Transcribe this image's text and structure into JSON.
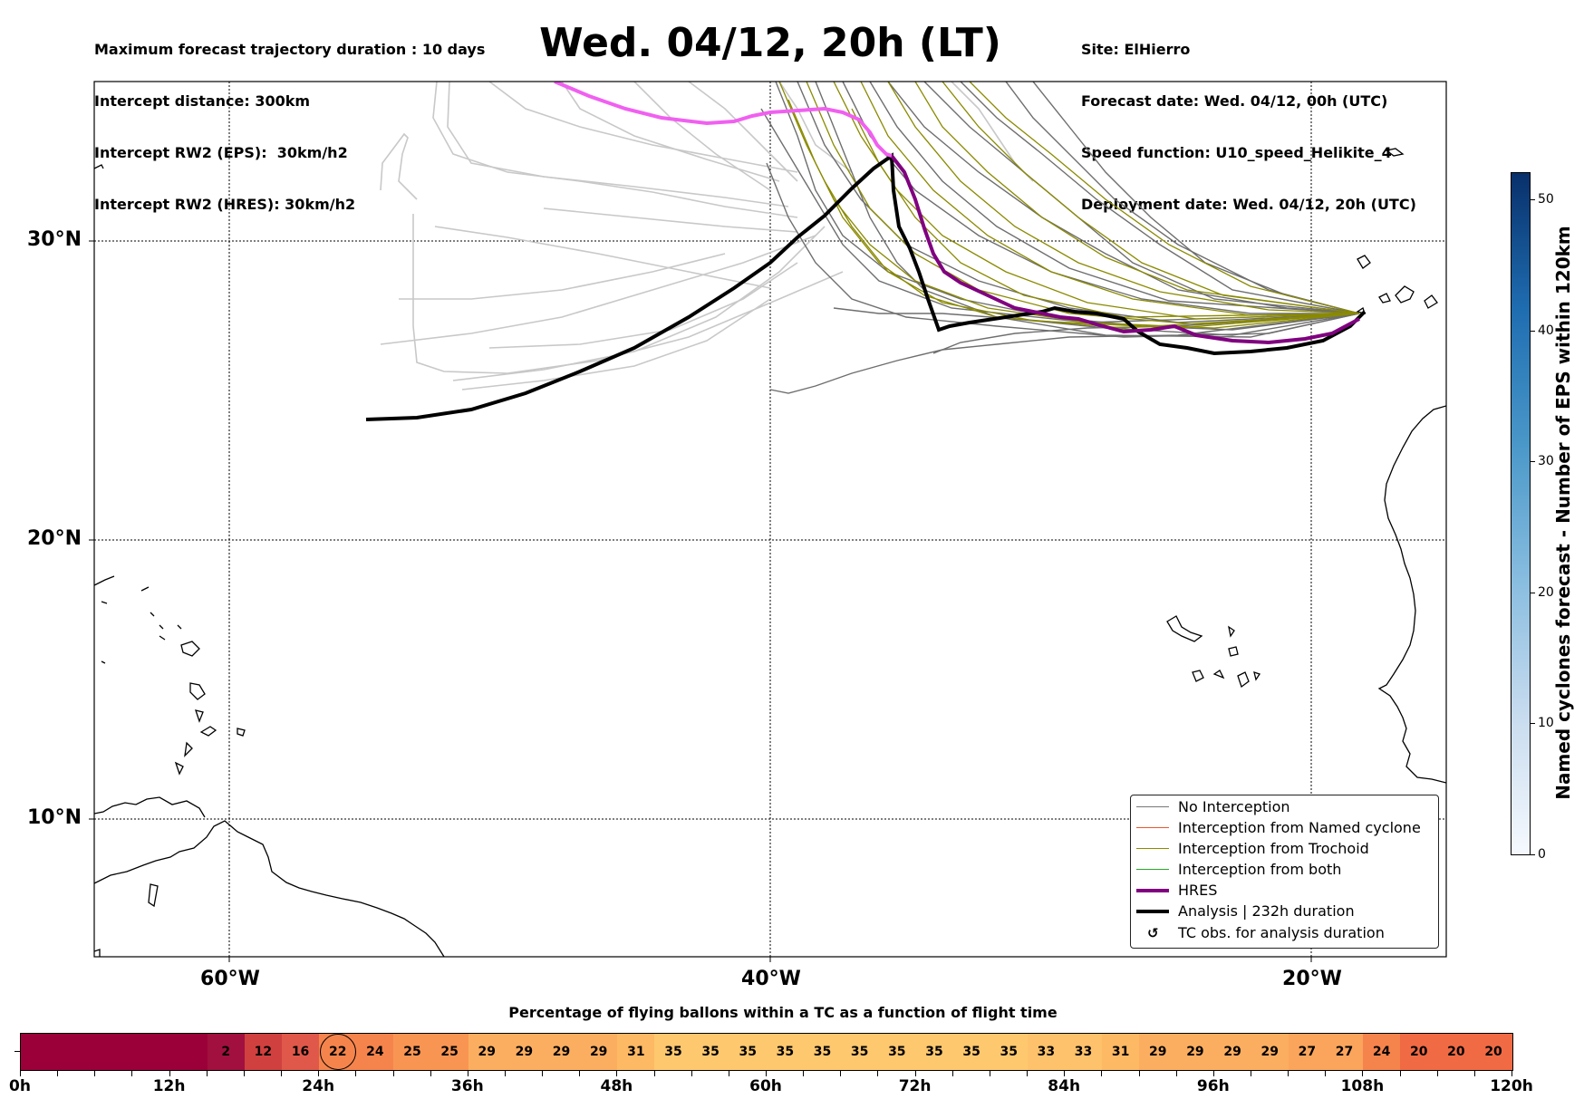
{
  "header": {
    "left_lines": [
      "Maximum forecast trajectory duration : 10 days",
      "Intercept distance: 300km",
      "Intercept RW2 (EPS):  30km/h2",
      "Intercept RW2 (HRES): 30km/h2"
    ],
    "title": "Wed. 04/12, 20h (LT)",
    "right_lines": [
      "Site: ElHierro",
      "Forecast date: Wed. 04/12, 00h (UTC)",
      "Speed function: U10_speed_Helikite_4",
      "Deployment date: Wed. 04/12, 20h (UTC)"
    ]
  },
  "map": {
    "lat_labels": [
      "30°N",
      "20°N",
      "10°N"
    ],
    "lon_labels": [
      "60°W",
      "40°W",
      "20°W"
    ]
  },
  "legend": {
    "items": [
      {
        "label": "No Interception",
        "color": "#777777"
      },
      {
        "label": "Interception from Named cyclone",
        "color": "#e8582a"
      },
      {
        "label": "Interception from Trochoid",
        "color": "#8a8a00"
      },
      {
        "label": "Interception from both",
        "color": "#2ca02c"
      },
      {
        "label": "HRES",
        "color": "#800080"
      },
      {
        "label": "Analysis | 232h duration",
        "color": "#000000"
      },
      {
        "label": "TC obs. for analysis duration",
        "icon": "cyclone-symbol-icon"
      }
    ]
  },
  "colorbar": {
    "title": "Named cyclones forecast - Number of EPS within 120km",
    "ticks": [
      "0",
      "10",
      "20",
      "30",
      "40",
      "50"
    ],
    "max": 52
  },
  "strip": {
    "title": "Percentage of flying ballons within a TC as a function of flight time",
    "values": [
      "",
      "",
      "",
      "",
      "",
      "2",
      "12",
      "16",
      "22",
      "24",
      "25",
      "25",
      "29",
      "29",
      "29",
      "29",
      "31",
      "35",
      "35",
      "35",
      "35",
      "35",
      "35",
      "35",
      "35",
      "35",
      "35",
      "33",
      "33",
      "31",
      "29",
      "29",
      "29",
      "29",
      "27",
      "27",
      "24",
      "20",
      "20",
      "20"
    ],
    "circled_index": 8,
    "hour_labels": [
      "0h",
      "12h",
      "24h",
      "36h",
      "48h",
      "60h",
      "72h",
      "84h",
      "96h",
      "108h",
      "120h"
    ]
  }
}
